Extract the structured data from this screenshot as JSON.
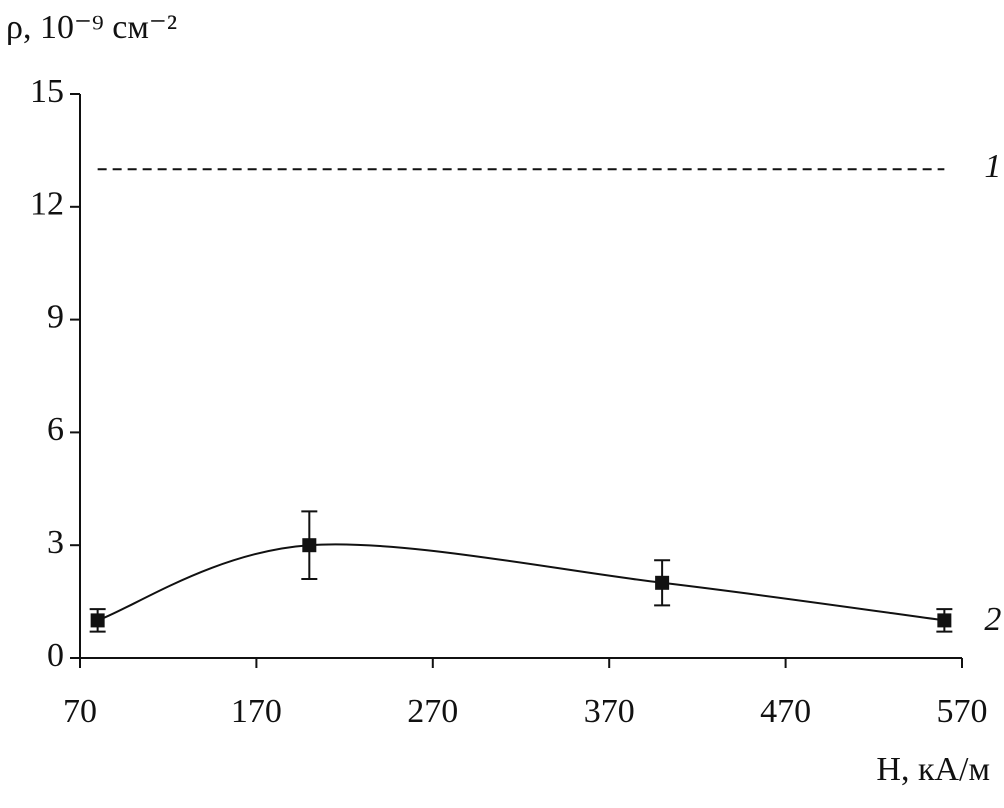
{
  "chart_data": {
    "type": "line",
    "ylabel": "ρ, 10⁻⁹ см⁻²",
    "xlabel": "H, кА/м",
    "xlim": [
      70,
      570
    ],
    "xticks": [
      70,
      170,
      270,
      370,
      470,
      570
    ],
    "ylim": [
      0,
      15
    ],
    "yticks": [
      0,
      3,
      6,
      9,
      12,
      15
    ],
    "series": [
      {
        "name": "1",
        "color": "#111111",
        "dashed": true,
        "x": [
          80,
          560
        ],
        "values": [
          13,
          13
        ]
      },
      {
        "name": "2",
        "color": "#111111",
        "dashed": false,
        "x": [
          80,
          200,
          400,
          560
        ],
        "values": [
          1,
          3,
          2,
          1
        ],
        "errors": [
          0.3,
          0.9,
          0.6,
          0.3
        ]
      }
    ]
  }
}
